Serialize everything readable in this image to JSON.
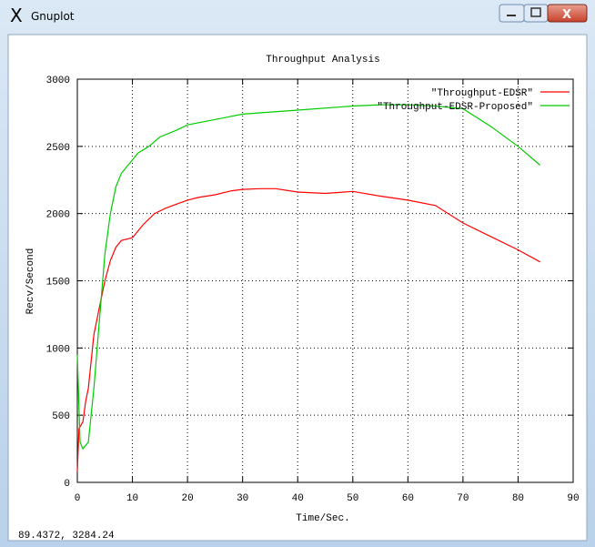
{
  "window": {
    "title": "Gnuplot",
    "status": "89.4372,  3284.24"
  },
  "chart_data": {
    "type": "line",
    "title": "Throughput Analysis",
    "x_label": "Time/Sec.",
    "y_label": "Recv/Second",
    "xlim": [
      0,
      90
    ],
    "xticks": [
      0,
      10,
      20,
      30,
      40,
      50,
      60,
      70,
      80,
      90
    ],
    "ylim": [
      0,
      3000
    ],
    "yticks": [
      0,
      500,
      1000,
      1500,
      2000,
      2500,
      3000
    ],
    "grid": true,
    "legend": "top-right",
    "series": [
      {
        "name": "\"Throughput-EDSR\"",
        "color": "#ff0000",
        "x": [
          0,
          0.3,
          1,
          1.5,
          2,
          3,
          4,
          5,
          6,
          7,
          8,
          9,
          10,
          11,
          12,
          14,
          16,
          18,
          20,
          22,
          25,
          28,
          30,
          33,
          36,
          40,
          45,
          50,
          55,
          60,
          65,
          70,
          75,
          80,
          84
        ],
        "values": [
          80,
          400,
          450,
          600,
          700,
          1100,
          1300,
          1500,
          1650,
          1750,
          1800,
          1810,
          1820,
          1870,
          1920,
          2000,
          2040,
          2070,
          2100,
          2120,
          2140,
          2170,
          2180,
          2185,
          2185,
          2160,
          2150,
          2165,
          2130,
          2100,
          2060,
          1930,
          1830,
          1730,
          1640
        ]
      },
      {
        "name": "\"Throughput-EDSR-Proposed\"",
        "color": "#00cc00",
        "x": [
          0,
          0.5,
          1,
          2,
          3,
          4,
          5,
          6,
          7,
          8,
          10,
          11,
          13,
          15,
          18,
          20,
          25,
          30,
          40,
          50,
          55,
          60,
          65,
          70,
          75,
          80,
          84
        ],
        "values": [
          950,
          300,
          250,
          300,
          700,
          1200,
          1700,
          2000,
          2200,
          2300,
          2400,
          2450,
          2500,
          2570,
          2620,
          2660,
          2700,
          2740,
          2770,
          2800,
          2810,
          2810,
          2800,
          2780,
          2650,
          2500,
          2360
        ]
      }
    ]
  }
}
